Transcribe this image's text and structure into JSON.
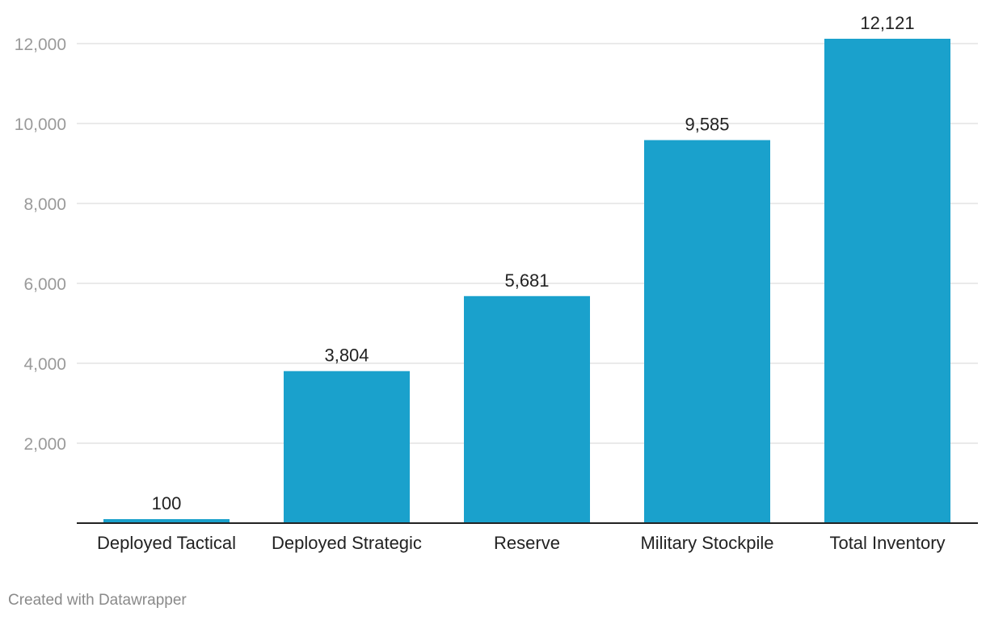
{
  "chart_data": {
    "type": "bar",
    "title": "",
    "xlabel": "",
    "ylabel": "",
    "categories": [
      "Deployed Tactical",
      "Deployed Strategic",
      "Reserve",
      "Military Stockpile",
      "Total Inventory"
    ],
    "values": [
      100,
      3804,
      5681,
      9585,
      12121
    ],
    "value_labels": [
      "100",
      "3,804",
      "5,681",
      "9,585",
      "12,121"
    ],
    "ylim": [
      0,
      12000
    ],
    "yticks": [
      2000,
      4000,
      6000,
      8000,
      10000,
      12000
    ],
    "ytick_labels": [
      "2,000",
      "4,000",
      "6,000",
      "8,000",
      "10,000",
      "12,000"
    ],
    "grid": true,
    "bar_color": "#1aa1cc"
  },
  "footer": {
    "credit": "Created with Datawrapper"
  }
}
